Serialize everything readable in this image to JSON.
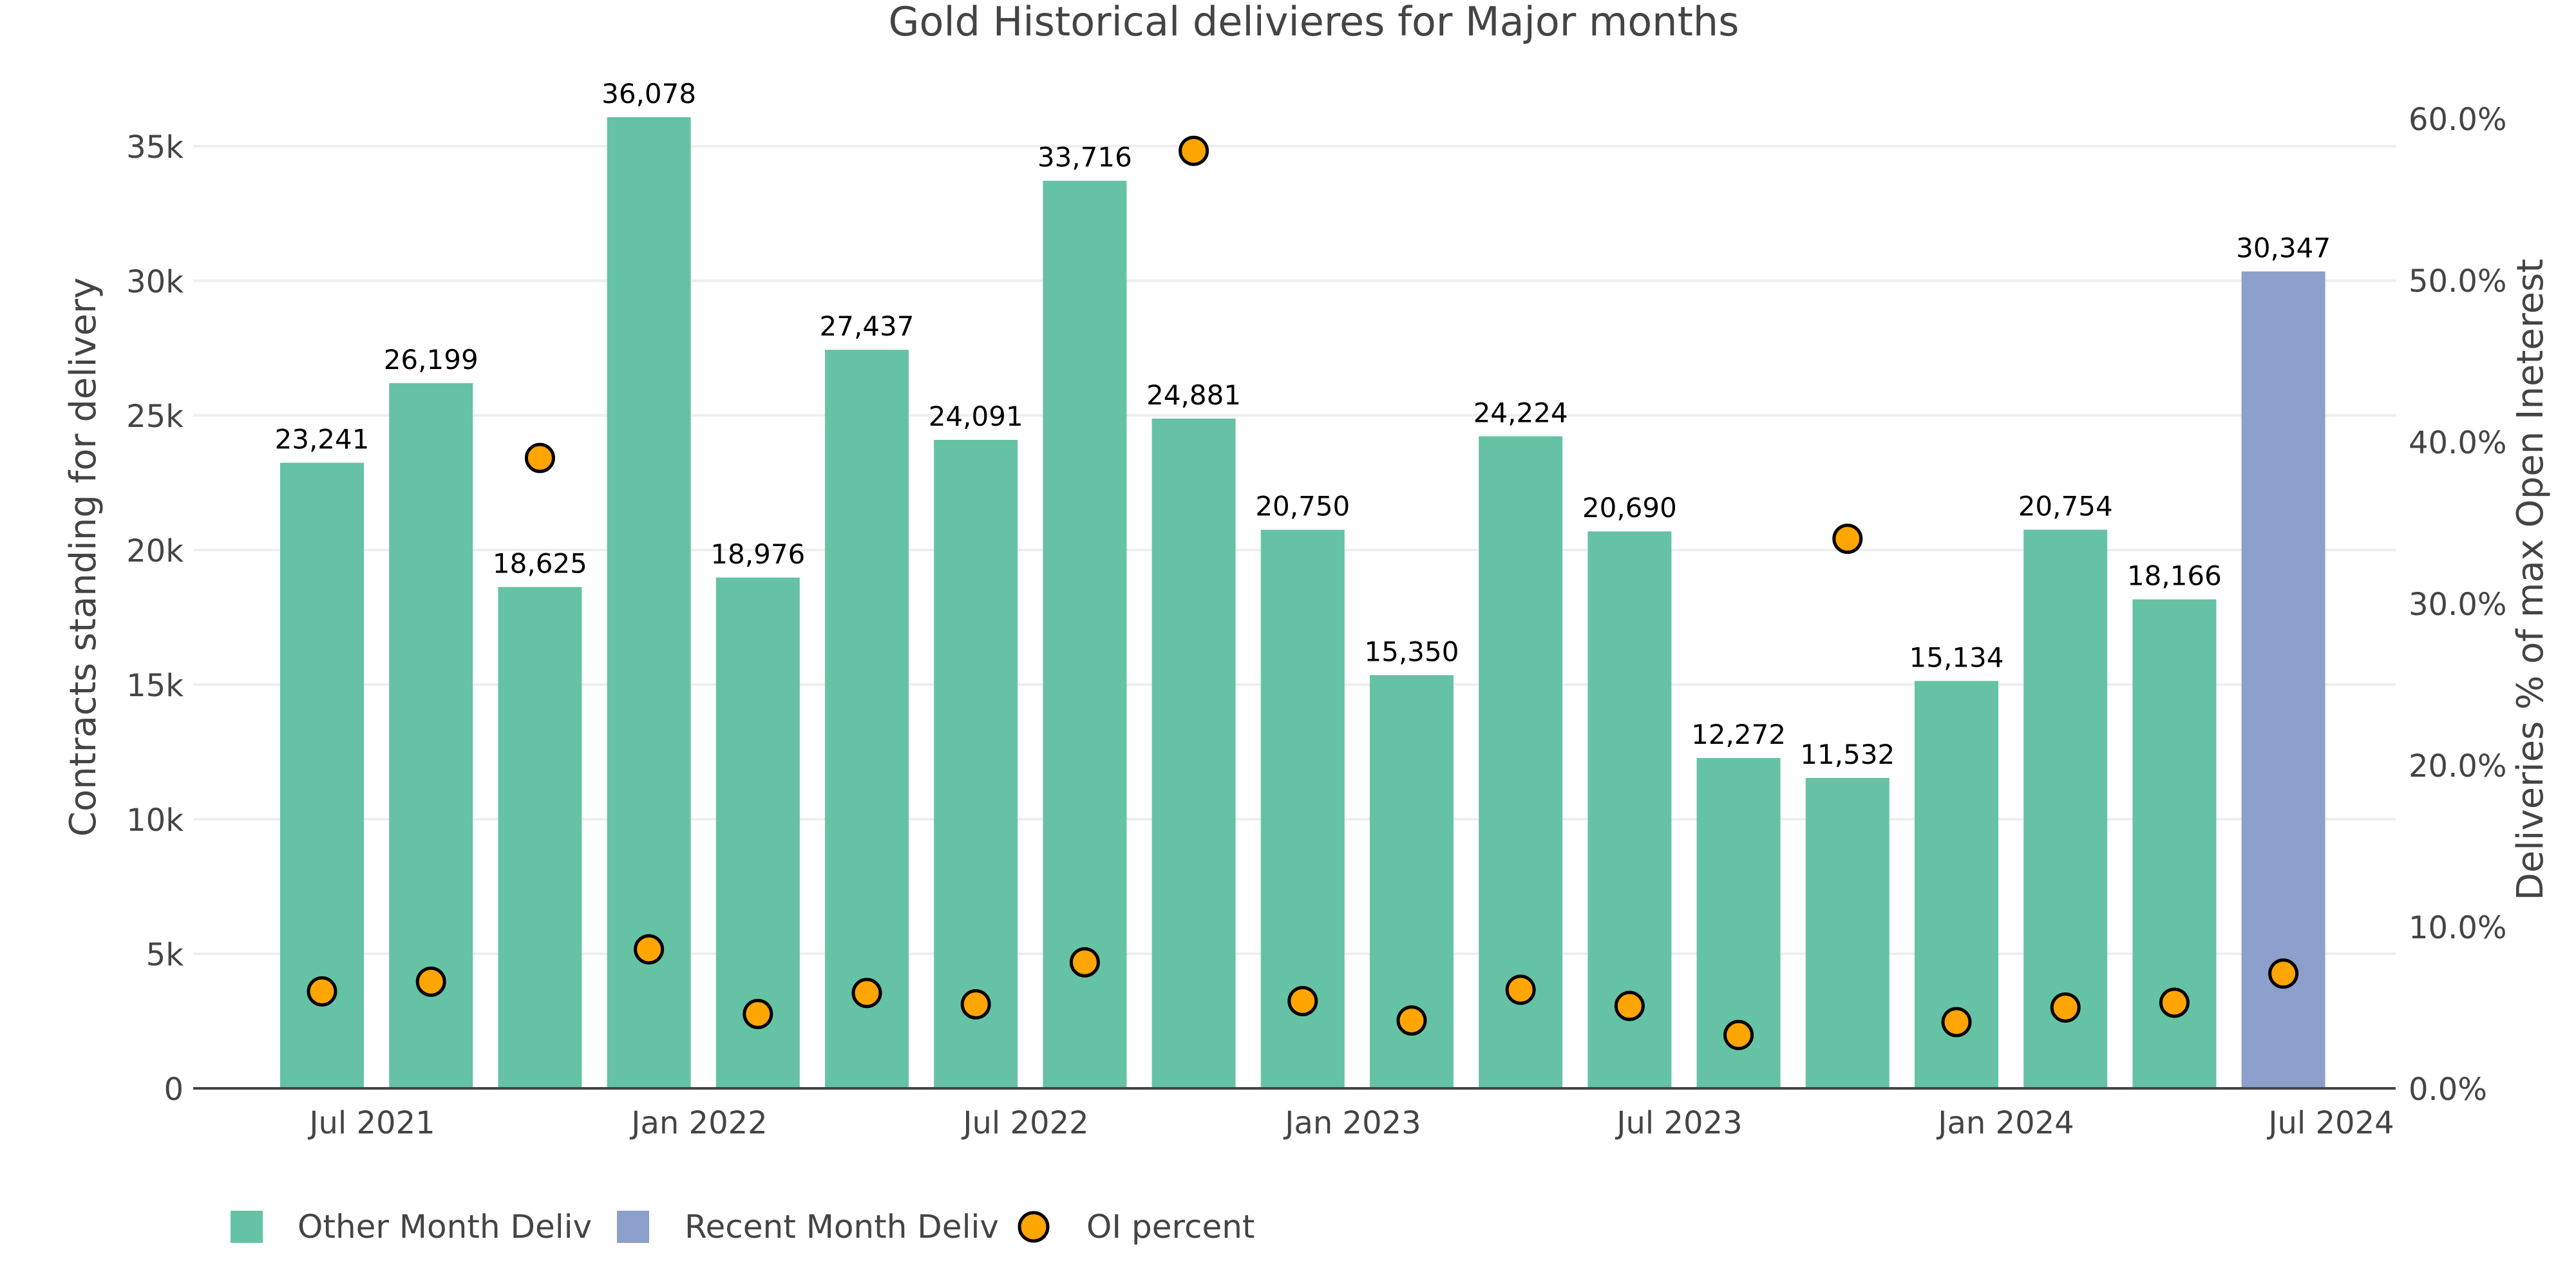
{
  "chart_data": {
    "type": "bar",
    "title": "Gold Historical delivieres for Major months",
    "ylabel": "Contracts standing for delivery",
    "y2label": "Deliveries % of max Open Ineterest",
    "ylim": [
      0,
      36500
    ],
    "y2lim": [
      0,
      60
    ],
    "y_ticks": [
      "0",
      "5k",
      "10k",
      "15k",
      "20k",
      "25k",
      "30k",
      "35k"
    ],
    "y2_ticks": [
      "0.0%",
      "10.0%",
      "20.0%",
      "30.0%",
      "40.0%",
      "50.0%",
      "60.0%"
    ],
    "x_ticks": [
      "Jul 2021",
      "Jan 2022",
      "Jul 2022",
      "Jan 2023",
      "Jul 2023",
      "Jan 2024",
      "Jul 2024"
    ],
    "grid": true,
    "legend_position": "bottom-left",
    "colors": {
      "other": "#66c2a5",
      "recent": "#8da0cb",
      "oi": "#ffa500",
      "oi_stroke": "#000000"
    },
    "bars": [
      {
        "value": 23241,
        "label": "23,241",
        "series": "other"
      },
      {
        "value": 26199,
        "label": "26,199",
        "series": "other"
      },
      {
        "value": 18625,
        "label": "18,625",
        "series": "other"
      },
      {
        "value": 36078,
        "label": "36,078",
        "series": "other"
      },
      {
        "value": 18976,
        "label": "18,976",
        "series": "other"
      },
      {
        "value": 27437,
        "label": "27,437",
        "series": "other"
      },
      {
        "value": 24091,
        "label": "24,091",
        "series": "other"
      },
      {
        "value": 33716,
        "label": "33,716",
        "series": "other"
      },
      {
        "value": 24881,
        "label": "24,881",
        "series": "other"
      },
      {
        "value": 20750,
        "label": "20,750",
        "series": "other"
      },
      {
        "value": 15350,
        "label": "15,350",
        "series": "other"
      },
      {
        "value": 24224,
        "label": "24,224",
        "series": "other"
      },
      {
        "value": 20690,
        "label": "20,690",
        "series": "other"
      },
      {
        "value": 12272,
        "label": "12,272",
        "series": "other"
      },
      {
        "value": 11532,
        "label": "11,532",
        "series": "other"
      },
      {
        "value": 15134,
        "label": "15,134",
        "series": "other"
      },
      {
        "value": 20754,
        "label": "20,754",
        "series": "other"
      },
      {
        "value": 18166,
        "label": "18,166",
        "series": "other"
      },
      {
        "value": 30347,
        "label": "30,347",
        "series": "recent"
      }
    ],
    "oi_percent": [
      6.0,
      6.6,
      39.0,
      8.6,
      4.6,
      5.9,
      5.2,
      7.8,
      58.0,
      5.4,
      4.2,
      6.1,
      5.1,
      3.3,
      34.0,
      4.1,
      5.0,
      5.3,
      7.1
    ],
    "series": [
      {
        "name": "Other Month Deliv"
      },
      {
        "name": "Recent Month Deliv"
      },
      {
        "name": "OI percent"
      }
    ]
  }
}
